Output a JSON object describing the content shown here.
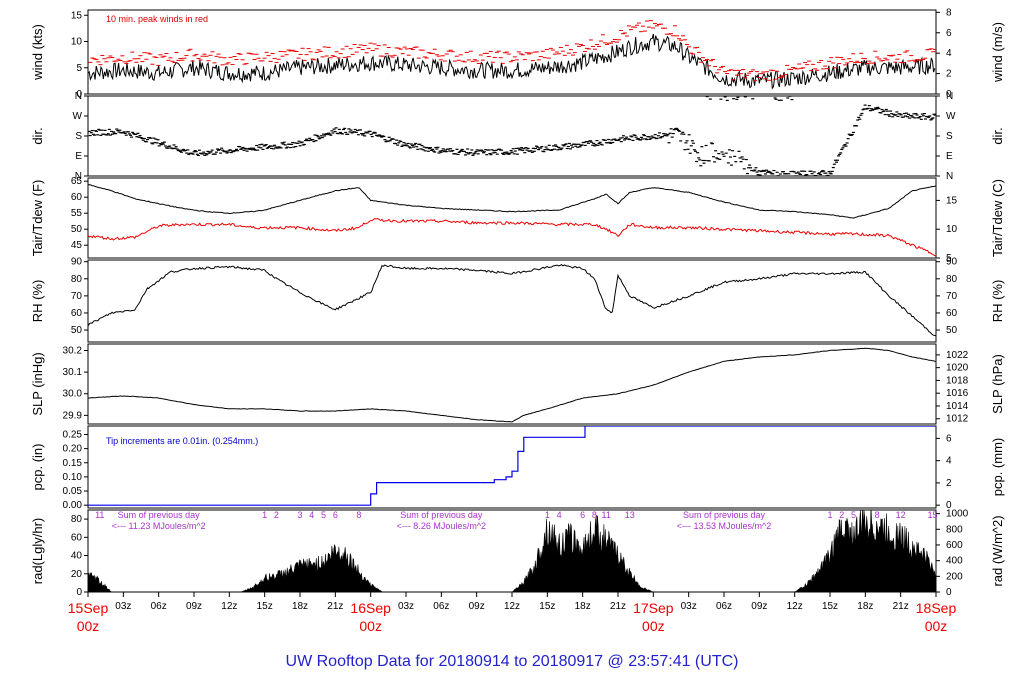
{
  "title": "UW Rooftop Data for 20180914  to  20180917 @ 23:57:41  (UTC)",
  "colors": {
    "black": "#000000",
    "red": "#ee0000",
    "blue": "#0000ee",
    "purple": "#aa33cc",
    "title_blue": "#2222cc"
  },
  "x_axis": {
    "unit": "hours since 15Sep 00z",
    "range": [
      0,
      72
    ],
    "hour_ticks": [
      "03z",
      "06z",
      "09z",
      "12z",
      "15z",
      "18z",
      "21z",
      "03z",
      "06z",
      "09z",
      "12z",
      "15z",
      "18z",
      "21z",
      "03z",
      "06z",
      "09z",
      "12z",
      "15z",
      "18z",
      "21z"
    ],
    "day_labels": [
      {
        "top": "15Sep",
        "bottom": "00z"
      },
      {
        "top": "16Sep",
        "bottom": "00z"
      },
      {
        "top": "17Sep",
        "bottom": "00z"
      },
      {
        "top": "18Sep",
        "bottom": "00z"
      }
    ]
  },
  "chart_data": [
    {
      "type": "line",
      "name": "wind",
      "ylabel_left": "wind (kts)",
      "ylabel_right": "wind (m/s)",
      "ylim": [
        0,
        16
      ],
      "left_ticks": [
        "0",
        "5",
        "10",
        "15"
      ],
      "right_ticks": [
        "0",
        "2",
        "4",
        "6",
        "8"
      ],
      "annotation": "10 min. peak winds in red",
      "x": [
        0,
        3,
        6,
        9,
        12,
        15,
        18,
        21,
        24,
        27,
        30,
        33,
        36,
        39,
        42,
        45,
        46,
        48,
        50,
        51,
        54,
        57,
        60,
        63,
        66,
        69,
        72
      ],
      "series": [
        {
          "values": [
            4,
            4.5,
            4,
            5,
            4,
            4,
            5,
            5.5,
            6,
            5.5,
            5,
            4.5,
            4.5,
            5,
            6,
            8,
            9,
            10,
            9,
            7,
            3,
            2.5,
            3,
            4,
            5,
            5,
            5.5
          ]
        },
        {
          "values": [
            6.5,
            7,
            6.5,
            7.5,
            6.5,
            7,
            7.5,
            8,
            8.5,
            8,
            7.5,
            7,
            7,
            7.5,
            9,
            11,
            12,
            13,
            12,
            9,
            4,
            3.5,
            4.5,
            6,
            7,
            7,
            7.5
          ]
        }
      ]
    },
    {
      "type": "scatter",
      "name": "direction",
      "ylabel_left": "dir.",
      "ylabel_right": "dir.",
      "left_ticks": [
        "N",
        "E",
        "S",
        "W",
        "N"
      ],
      "right_ticks": [
        "N",
        "E",
        "S",
        "W",
        "N"
      ],
      "ylim": [
        0,
        360
      ],
      "x": [
        0,
        3,
        6,
        9,
        12,
        15,
        18,
        21,
        24,
        27,
        30,
        33,
        36,
        39,
        42,
        45,
        48,
        50,
        51,
        52,
        54,
        55,
        57,
        60,
        63,
        66,
        69,
        72
      ],
      "values": [
        195,
        200,
        150,
        100,
        115,
        130,
        145,
        205,
        190,
        140,
        115,
        105,
        110,
        125,
        140,
        165,
        180,
        185,
        150,
        90,
        120,
        75,
        15,
        8,
        12,
        310,
        270,
        265
      ]
    },
    {
      "type": "line",
      "name": "temperature",
      "ylabel_left": "Tair/Tdew (F)",
      "ylabel_right": "Tair/Tdew (C)",
      "ylim": [
        41,
        66
      ],
      "left_ticks": [
        "45",
        "50",
        "55",
        "60",
        "65"
      ],
      "right_ticks": [
        "5",
        "10",
        "15"
      ],
      "x": [
        0,
        2,
        4,
        6,
        8,
        10,
        12,
        14,
        15,
        18,
        21,
        23,
        24,
        27,
        30,
        33,
        36,
        40,
        43,
        44,
        45,
        46,
        48,
        51,
        54,
        57,
        60,
        63,
        65,
        68,
        70,
        72
      ],
      "series": [
        {
          "values": [
            64,
            62,
            59.5,
            58,
            56.5,
            55.5,
            55,
            55.5,
            56,
            59,
            62,
            63,
            59,
            57.5,
            56.5,
            56,
            55.5,
            56,
            59.5,
            61,
            58,
            61.5,
            63,
            61.5,
            58.5,
            56,
            55.5,
            54.5,
            53.5,
            56.5,
            62,
            63.5
          ]
        },
        {
          "values": [
            48,
            47,
            47.5,
            51,
            51.5,
            51.5,
            51.5,
            50.5,
            50.5,
            50.5,
            49.5,
            50.5,
            53,
            52.5,
            52.5,
            52,
            52,
            51.5,
            51.5,
            50,
            48,
            51.5,
            50.5,
            50.5,
            50,
            49.5,
            49,
            48.5,
            48.5,
            48,
            45,
            42
          ]
        }
      ]
    },
    {
      "type": "line",
      "name": "relative humidity",
      "ylabel_left": "RH (%)",
      "ylabel_right": "RH (%)",
      "ylim": [
        43,
        91
      ],
      "left_ticks": [
        "50",
        "60",
        "70",
        "80",
        "90"
      ],
      "right_ticks": [
        "50",
        "60",
        "70",
        "80",
        "90"
      ],
      "x": [
        0,
        2,
        4,
        5,
        7,
        9,
        12,
        15,
        16,
        18,
        20,
        21,
        24,
        25,
        27,
        30,
        33,
        36,
        40,
        42,
        43,
        44,
        44.5,
        45,
        46,
        48,
        51,
        54,
        57,
        60,
        63,
        66,
        68,
        70,
        72
      ],
      "values": [
        53,
        60,
        62,
        74,
        84,
        86,
        87,
        85,
        80,
        72,
        65,
        62,
        72,
        88,
        86,
        86,
        85,
        83,
        88,
        86,
        80,
        62,
        60,
        82,
        70,
        63,
        70,
        78,
        80,
        83,
        83,
        84,
        70,
        58,
        46
      ]
    },
    {
      "type": "line",
      "name": "sea level pressure",
      "ylabel_left": "SLP (inHg)",
      "ylabel_right": "SLP (hPa)",
      "ylim": [
        29.86,
        30.23
      ],
      "left_ticks": [
        "29.9",
        "30.0",
        "30.1",
        "30.2"
      ],
      "right_ticks": [
        "1012",
        "1014",
        "1016",
        "1018",
        "1020",
        "1022"
      ],
      "x": [
        0,
        3,
        6,
        9,
        12,
        15,
        18,
        21,
        24,
        27,
        30,
        33,
        36,
        37,
        39,
        42,
        45,
        48,
        51,
        54,
        57,
        60,
        63,
        66,
        68,
        70,
        72
      ],
      "values": [
        29.98,
        29.99,
        29.98,
        29.95,
        29.93,
        29.93,
        29.92,
        29.92,
        29.93,
        29.92,
        29.9,
        29.88,
        29.87,
        29.9,
        29.93,
        29.98,
        30.0,
        30.04,
        30.1,
        30.15,
        30.17,
        30.18,
        30.2,
        30.21,
        30.2,
        30.17,
        30.15
      ]
    },
    {
      "type": "line",
      "name": "precipitation",
      "ylabel_left": "pcp. (in)",
      "ylabel_right": "pcp. (mm)",
      "ylim": [
        -0.01,
        0.28
      ],
      "left_ticks": [
        "0.00",
        "0.05",
        "0.10",
        "0.15",
        "0.20",
        "0.25"
      ],
      "right_ticks": [
        "0",
        "2",
        "4",
        "6"
      ],
      "annotation": "Tip increments are 0.01in. (0.254mm.)",
      "x": [
        0,
        23.5,
        24,
        24.5,
        34,
        34.5,
        35.5,
        36,
        36.5,
        37,
        40,
        42,
        42.2,
        72
      ],
      "values": [
        0,
        0,
        0.04,
        0.08,
        0.08,
        0.09,
        0.1,
        0.12,
        0.19,
        0.24,
        0.24,
        0.24,
        0.28,
        0.28
      ]
    },
    {
      "type": "area",
      "name": "solar radiation",
      "ylabel_left": "rad(Lgly/hr)",
      "ylabel_right": "rad (W/m^2)",
      "ylim": [
        0,
        90
      ],
      "left_ticks": [
        "0",
        "20",
        "40",
        "60",
        "80"
      ],
      "right_ticks": [
        "0",
        "200",
        "400",
        "600",
        "800",
        "1000"
      ],
      "x": [
        0,
        1,
        2,
        13,
        14,
        15,
        16,
        17,
        18,
        19,
        20,
        21,
        22,
        23,
        24,
        25,
        36,
        37,
        38,
        39,
        40,
        41,
        42,
        43,
        44,
        45,
        46,
        47,
        48,
        49,
        60,
        61,
        62,
        63,
        64,
        65,
        66,
        67,
        68,
        69,
        70,
        71,
        72
      ],
      "values": [
        18,
        12,
        0,
        0,
        5,
        15,
        18,
        22,
        28,
        30,
        32,
        45,
        40,
        22,
        8,
        0,
        0,
        10,
        30,
        70,
        50,
        60,
        45,
        70,
        55,
        40,
        20,
        5,
        0,
        0,
        0,
        8,
        22,
        40,
        70,
        62,
        75,
        72,
        65,
        60,
        50,
        40,
        20
      ],
      "annotations": [
        {
          "hour": 1,
          "text": "11"
        },
        {
          "hour": 15,
          "text": "1"
        },
        {
          "hour": 16,
          "text": "2"
        },
        {
          "hour": 18,
          "text": "3"
        },
        {
          "hour": 19,
          "text": "4"
        },
        {
          "hour": 20,
          "text": "5"
        },
        {
          "hour": 21,
          "text": "6"
        },
        {
          "hour": 23,
          "text": "8"
        },
        {
          "hour": 39,
          "text": "1"
        },
        {
          "hour": 40,
          "text": "4"
        },
        {
          "hour": 42,
          "text": "6"
        },
        {
          "hour": 43,
          "text": "8"
        },
        {
          "hour": 44,
          "text": "11"
        },
        {
          "hour": 46,
          "text": "13"
        },
        {
          "hour": 63,
          "text": "1"
        },
        {
          "hour": 64,
          "text": "2"
        },
        {
          "hour": 65,
          "text": "5"
        },
        {
          "hour": 67,
          "text": "8"
        },
        {
          "hour": 69,
          "text": "12"
        },
        {
          "hour": 71.7,
          "text": "15"
        }
      ],
      "day_sums": [
        {
          "hour": 6,
          "line1": "Sum of previous day",
          "line2": "<--- 11.23 MJoules/m^2"
        },
        {
          "hour": 30,
          "line1": "Sum of previous day",
          "line2": "<--- 8.26 MJoules/m^2"
        },
        {
          "hour": 54,
          "line1": "Sum of previous day",
          "line2": "<--- 13.53 MJoules/m^2"
        }
      ]
    }
  ]
}
